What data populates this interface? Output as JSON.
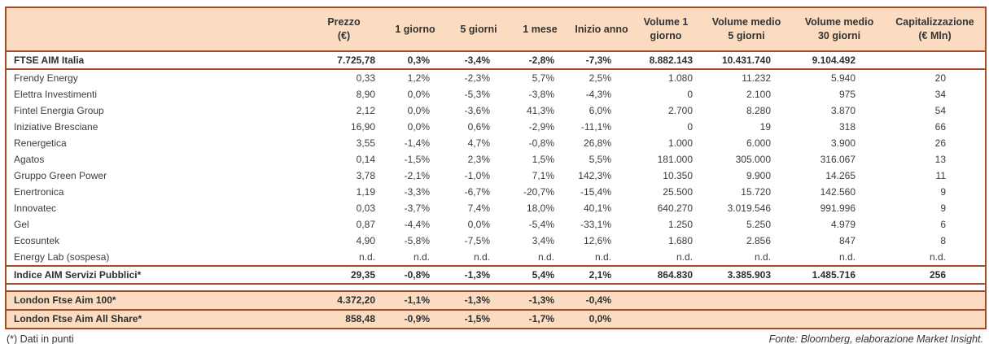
{
  "accent_colors": {
    "header_bg": "#FBDCC1",
    "border": "#A3492C",
    "text": "#3C3C3C"
  },
  "chart_data": {
    "type": "table",
    "columns": [
      "",
      "Prezzo\n(€)",
      "1 giorno",
      "5 giorni",
      "1 mese",
      "Inizio anno",
      "Volume 1\ngiorno",
      "Volume medio\n5 giorni",
      "Volume medio\n30 giorni",
      "Capitalizzazione\n(€ Mln)"
    ],
    "rows": [
      {
        "name": "FTSE AIM Italia",
        "style": "index",
        "values": [
          "7.725,78",
          "0,3%",
          "-3,4%",
          "-2,8%",
          "-7,3%",
          "8.882.143",
          "10.431.740",
          "9.104.492",
          ""
        ]
      },
      {
        "name": "Frendy Energy",
        "style": "stock",
        "values": [
          "0,33",
          "1,2%",
          "-2,3%",
          "5,7%",
          "2,5%",
          "1.080",
          "11.232",
          "5.940",
          "20"
        ]
      },
      {
        "name": "Elettra Investimenti",
        "style": "stock",
        "values": [
          "8,90",
          "0,0%",
          "-5,3%",
          "-3,8%",
          "-4,3%",
          "0",
          "2.100",
          "975",
          "34"
        ]
      },
      {
        "name": "Fintel Energia Group",
        "style": "stock",
        "values": [
          "2,12",
          "0,0%",
          "-3,6%",
          "41,3%",
          "6,0%",
          "2.700",
          "8.280",
          "3.870",
          "54"
        ]
      },
      {
        "name": "Iniziative Bresciane",
        "style": "stock",
        "values": [
          "16,90",
          "0,0%",
          "0,6%",
          "-2,9%",
          "-11,1%",
          "0",
          "19",
          "318",
          "66"
        ]
      },
      {
        "name": "Renergetica",
        "style": "stock",
        "values": [
          "3,55",
          "-1,4%",
          "4,7%",
          "-0,8%",
          "26,8%",
          "1.000",
          "6.000",
          "3.900",
          "26"
        ]
      },
      {
        "name": "Agatos",
        "style": "stock",
        "values": [
          "0,14",
          "-1,5%",
          "2,3%",
          "1,5%",
          "5,5%",
          "181.000",
          "305.000",
          "316.067",
          "13"
        ]
      },
      {
        "name": "Gruppo Green Power",
        "style": "stock",
        "values": [
          "3,78",
          "-2,1%",
          "-1,0%",
          "7,1%",
          "142,3%",
          "10.350",
          "9.900",
          "14.265",
          "11"
        ]
      },
      {
        "name": "Enertronica",
        "style": "stock",
        "values": [
          "1,19",
          "-3,3%",
          "-6,7%",
          "-20,7%",
          "-15,4%",
          "25.500",
          "15.720",
          "142.560",
          "9"
        ]
      },
      {
        "name": "Innovatec",
        "style": "stock",
        "values": [
          "0,03",
          "-3,7%",
          "7,4%",
          "18,0%",
          "40,1%",
          "640.270",
          "3.019.546",
          "991.996",
          "9"
        ]
      },
      {
        "name": "Gel",
        "style": "stock",
        "values": [
          "0,87",
          "-4,4%",
          "0,0%",
          "-5,4%",
          "-33,1%",
          "1.250",
          "5.250",
          "4.979",
          "6"
        ]
      },
      {
        "name": "Ecosuntek",
        "style": "stock",
        "values": [
          "4,90",
          "-5,8%",
          "-7,5%",
          "3,4%",
          "12,6%",
          "1.680",
          "2.856",
          "847",
          "8"
        ]
      },
      {
        "name": "Energy Lab (sospesa)",
        "style": "stock",
        "values": [
          "n.d.",
          "n.d.",
          "n.d.",
          "n.d.",
          "n.d.",
          "n.d.",
          "n.d.",
          "n.d.",
          "n.d."
        ]
      },
      {
        "name": "Indice AIM Servizi Pubblici*",
        "style": "index",
        "values": [
          "29,35",
          "-0,8%",
          "-1,3%",
          "5,4%",
          "2,1%",
          "864.830",
          "3.385.903",
          "1.485.716",
          "256"
        ]
      },
      {
        "name": "",
        "style": "spacer",
        "values": []
      },
      {
        "name": "London Ftse Aim 100*",
        "style": "peach",
        "values": [
          "4.372,20",
          "-1,1%",
          "-1,3%",
          "-1,3%",
          "-0,4%",
          "",
          "",
          "",
          ""
        ]
      },
      {
        "name": "London Ftse Aim All Share*",
        "style": "peach",
        "values": [
          "858,48",
          "-0,9%",
          "-1,5%",
          "-1,7%",
          "0,0%",
          "",
          "",
          "",
          ""
        ]
      }
    ]
  },
  "footer": {
    "note": "(*) Dati in punti",
    "source": "Fonte: Bloomberg, elaborazione Market Insight."
  }
}
